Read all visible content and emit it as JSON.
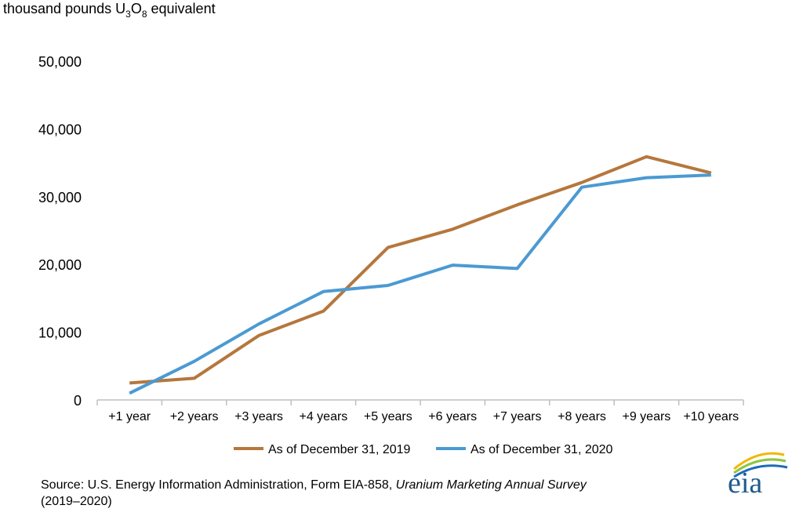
{
  "unit_label": {
    "before": "thousand pounds U",
    "sub1": "3",
    "mid": "O",
    "sub2": "8",
    "after": " equivalent"
  },
  "colors": {
    "series_2019": "#B5773D",
    "series_2020": "#4B9AD2",
    "axis": "#BFBFBF"
  },
  "chart_data": {
    "type": "line",
    "title": "",
    "ylabel": "thousand pounds U3O8 equivalent",
    "ylim": [
      0,
      50000
    ],
    "yticks": [
      "0",
      "10,000",
      "20,000",
      "30,000",
      "40,000",
      "50,000"
    ],
    "ytick_values": [
      0,
      10000,
      20000,
      30000,
      40000,
      50000
    ],
    "grid": false,
    "legend_position": "bottom",
    "categories": [
      "+1 year",
      "+2 years",
      "+3 years",
      "+4 years",
      "+5 years",
      "+6 years",
      "+7 years",
      "+8 years",
      "+9 years",
      "+10 years"
    ],
    "series": [
      {
        "name": "As of December 31, 2019",
        "color": "#B5773D",
        "values": [
          2500,
          3200,
          9500,
          13100,
          22500,
          25200,
          28800,
          32100,
          35900,
          33500
        ]
      },
      {
        "name": "As of December 31, 2020",
        "color": "#4B9AD2",
        "values": [
          1000,
          5700,
          11200,
          16000,
          16900,
          19900,
          19400,
          31400,
          32800,
          33200
        ]
      }
    ]
  },
  "source": {
    "prefix": "Source: U.S. Energy Information Administration, Form EIA-858, ",
    "italic": "Uranium Marketing Annual Survey",
    "suffix": "(2019–2020)"
  },
  "logo": {
    "text": "eia",
    "icon": "eia-logo-arcs"
  }
}
